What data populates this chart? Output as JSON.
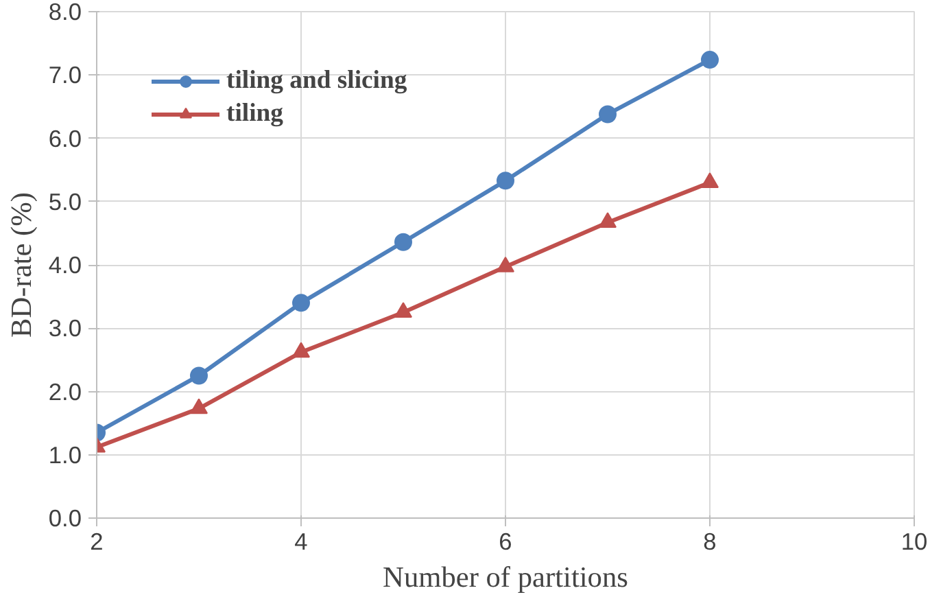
{
  "chart_data": {
    "type": "line",
    "xlabel": "Number of partitions",
    "ylabel": "BD-rate (%)",
    "x": [
      2,
      3,
      4,
      5,
      6,
      7,
      8
    ],
    "series": [
      {
        "name": "tiling and slicing",
        "color": "#4f81bd",
        "marker": "circle",
        "values": [
          1.35,
          2.25,
          3.4,
          4.36,
          5.33,
          6.38,
          7.24
        ]
      },
      {
        "name": "tiling",
        "color": "#c0504d",
        "marker": "triangle",
        "values": [
          1.12,
          1.73,
          2.62,
          3.25,
          3.97,
          4.67,
          5.3
        ]
      }
    ],
    "xlim": [
      2,
      10
    ],
    "xticks": [
      2,
      4,
      6,
      8,
      10
    ],
    "ylim": [
      0,
      8
    ],
    "yticks": [
      {
        "value": 0,
        "label": "0.0"
      },
      {
        "value": 1,
        "label": "1.0"
      },
      {
        "value": 2,
        "label": "2.0"
      },
      {
        "value": 3,
        "label": "3.0"
      },
      {
        "value": 4,
        "label": "4.0"
      },
      {
        "value": 5,
        "label": "5.0"
      },
      {
        "value": 6,
        "label": "6.0"
      },
      {
        "value": 7,
        "label": "7.0"
      },
      {
        "value": 8,
        "label": "8.0"
      }
    ],
    "grid": true,
    "legend": "top left"
  }
}
